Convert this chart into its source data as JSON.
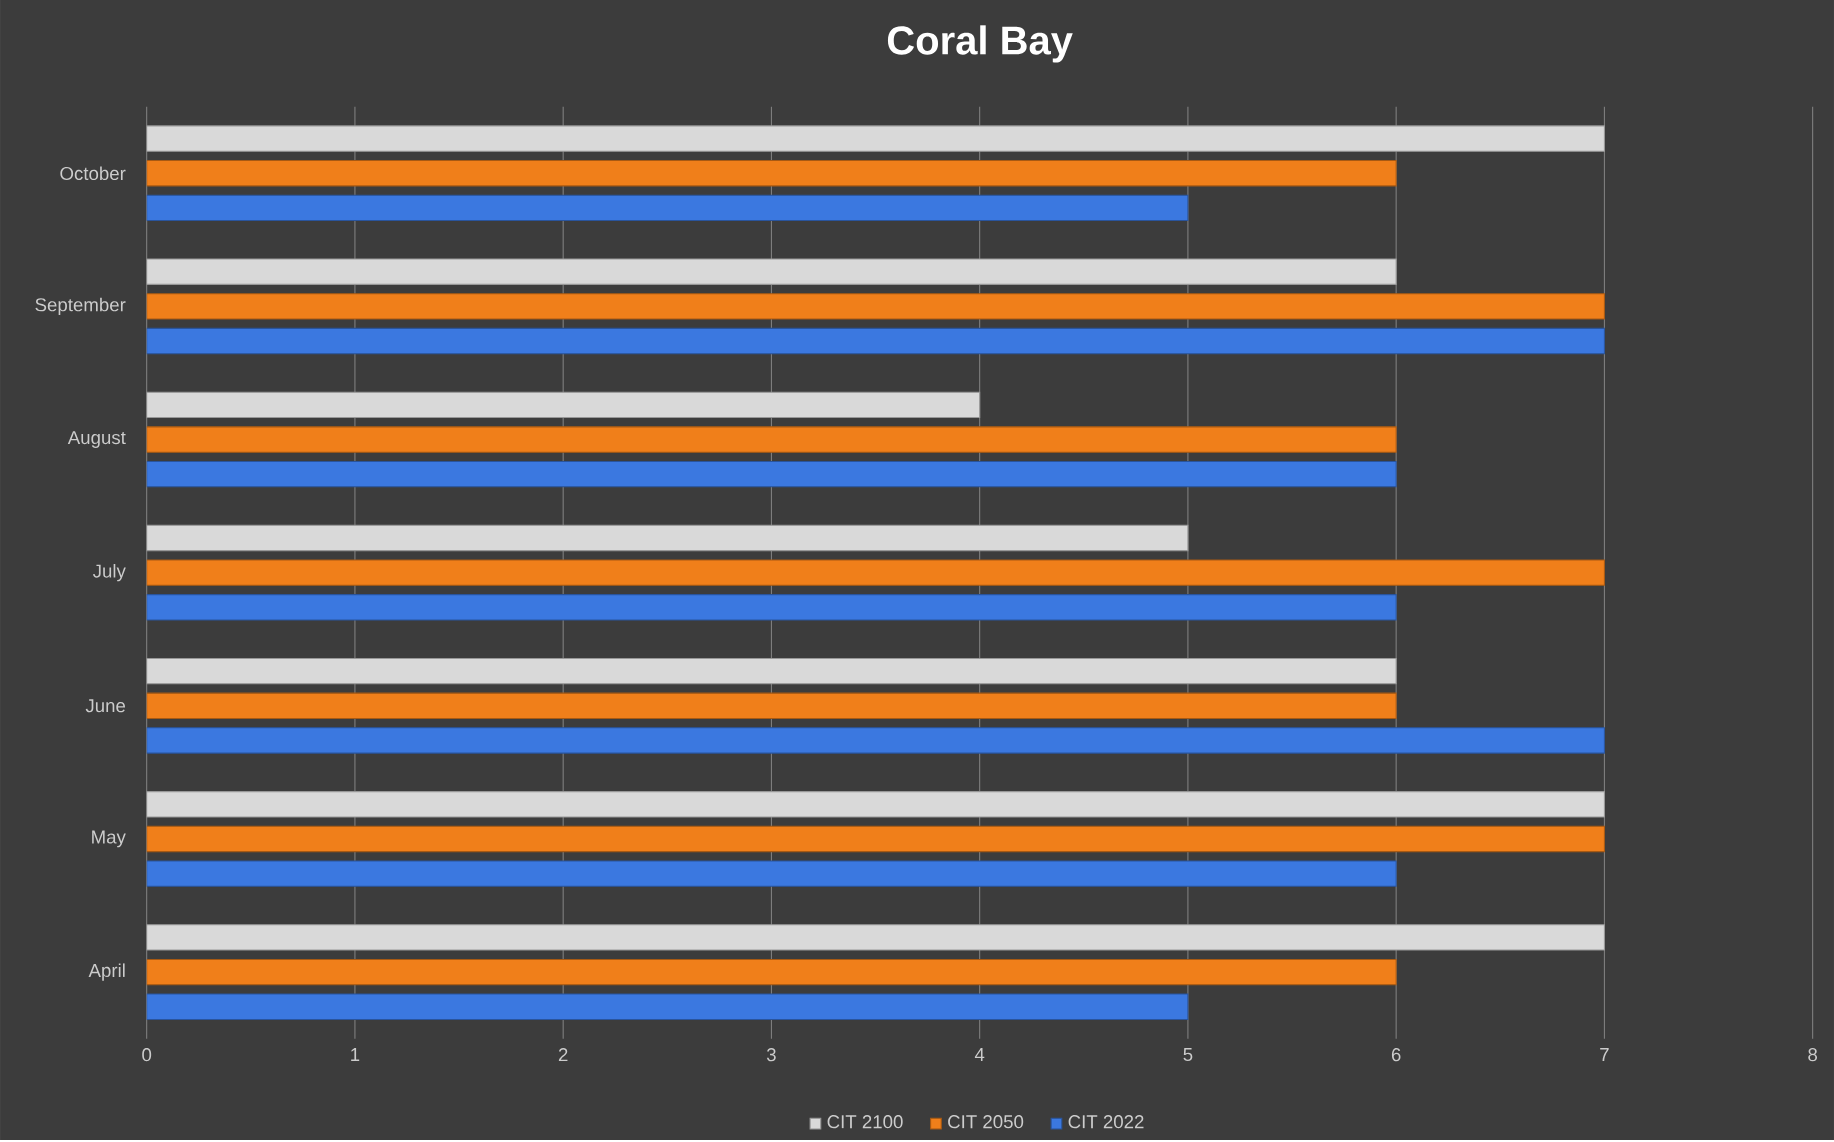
{
  "chart_data": {
    "type": "bar",
    "orientation": "horizontal",
    "title": "Coral Bay",
    "categories": [
      "October",
      "September",
      "August",
      "July",
      "June",
      "May",
      "April"
    ],
    "series": [
      {
        "name": "CIT 2100",
        "color": "#d9d9d9",
        "values": [
          7,
          6,
          4,
          5,
          6,
          7,
          7
        ]
      },
      {
        "name": "CIT 2050",
        "color": "#f07f1a",
        "values": [
          6,
          7,
          6,
          7,
          6,
          7,
          6
        ]
      },
      {
        "name": "CIT 2022",
        "color": "#3b78e0",
        "values": [
          5,
          7,
          6,
          6,
          7,
          6,
          5
        ]
      }
    ],
    "xlim": [
      0,
      8
    ],
    "xticks": [
      0,
      1,
      2,
      3,
      4,
      5,
      6,
      7,
      8
    ],
    "grid": "x",
    "legend": "bottom"
  }
}
